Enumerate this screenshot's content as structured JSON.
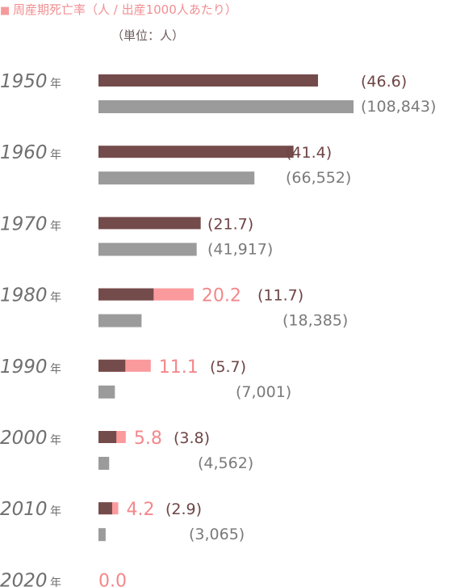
{
  "legend": {
    "marker": "■",
    "title": "周産期死亡率（人 / 出産1000人あたり）",
    "unit": "（単位：人）"
  },
  "colors": {
    "brown": "#744b4b",
    "pink": "#fb9a9c",
    "gray": "#9b9b9b"
  },
  "chart_data": {
    "type": "bar",
    "orientation": "horizontal",
    "year_suffix": "年",
    "years": [
      "1950",
      "1960",
      "1970",
      "1980",
      "1990",
      "2000",
      "2010",
      "2020"
    ],
    "series": [
      {
        "key": "rate_old",
        "values": [
          46.6,
          41.4,
          21.7,
          11.7,
          5.7,
          3.8,
          2.9,
          null
        ],
        "labels": [
          "(46.6)",
          "(41.4)",
          "(21.7)",
          "(11.7)",
          "(5.7)",
          "(3.8)",
          "(2.9)",
          null
        ]
      },
      {
        "key": "rate_new",
        "values": [
          null,
          null,
          null,
          20.2,
          11.1,
          5.8,
          4.2,
          0.0
        ],
        "labels": [
          null,
          null,
          null,
          "20.2",
          "11.1",
          "5.8",
          "4.2",
          "0.0"
        ]
      },
      {
        "key": "count",
        "values": [
          108843,
          66552,
          41917,
          18385,
          7001,
          4562,
          3065,
          null
        ],
        "labels": [
          "(108,843)",
          "(66,552)",
          "(41,917)",
          "(18,385)",
          "(7,001)",
          "(4,562)",
          "(3,065)",
          null
        ]
      }
    ]
  }
}
